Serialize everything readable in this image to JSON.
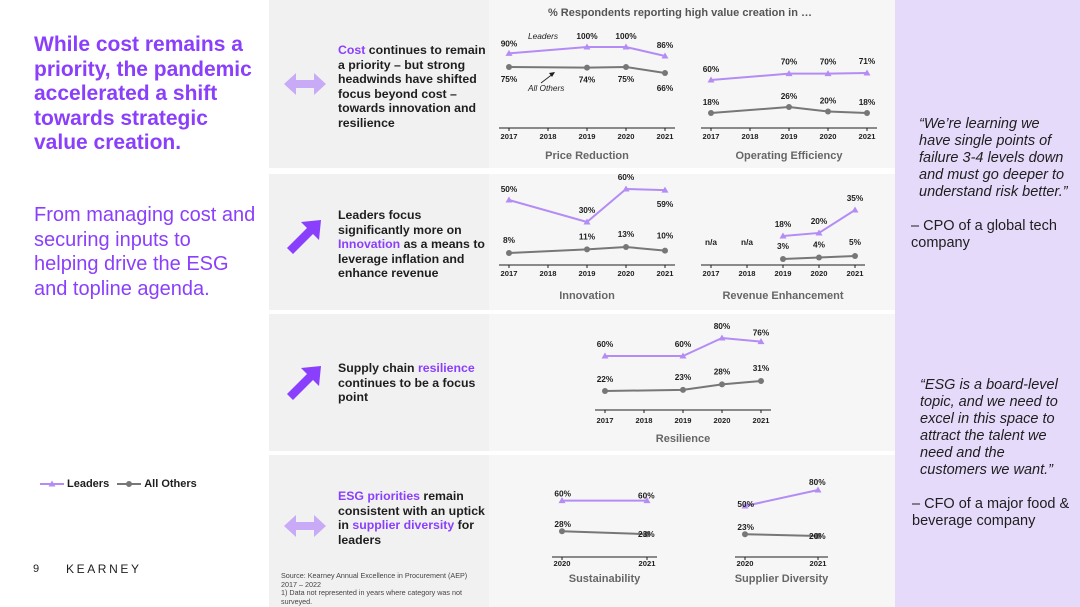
{
  "headline": "While cost remains a priority, the pandemic accelerated a shift towards strategic value creation.",
  "subline": "From managing cost and securing inputs to helping drive the ESG and topline agenda.",
  "legend": {
    "leaders": "Leaders",
    "others": "All Others"
  },
  "page_number": "9",
  "brand": "KEARNEY",
  "chart_header": "% Respondents reporting high value creation in …",
  "annotations": {
    "leaders": "Leaders",
    "others": "All Others"
  },
  "bands": [
    {
      "pre": "",
      "hl": "Cost",
      "post": " continues to remain a priority – but strong headwinds have shifted focus beyond cost – towards innovation and resilience",
      "arrow": "double"
    },
    {
      "pre": "Leaders focus significantly more on ",
      "hl": "Innovation",
      "post": " as a means to leverage inflation and enhance revenue",
      "arrow": "up"
    },
    {
      "pre": "Supply chain ",
      "hl": "resilience",
      "post": " continues to be a focus point",
      "arrow": "up"
    },
    {
      "pre": "",
      "hl": "ESG priorities",
      "post": " remain consistent with an uptick in ",
      "hl2": "supplier diversity",
      "post2": " for leaders",
      "arrow": "double"
    }
  ],
  "quotes": [
    {
      "text": "“We’re learning we have single points of failure 3-4 levels down and must go deeper to understand risk better.”",
      "attribution": "– CPO of a global tech company"
    },
    {
      "text": "“ESG is a board-level topic, and we need to excel in this space to attract the talent we need and the customers we want.”",
      "attribution": "– CFO of a major food & beverage company"
    }
  ],
  "source": "Source: Kearney Annual Excellence in Procurement (AEP) 2017 – 2022\n1) Data not represented in years where category was not surveyed.",
  "chart_data": [
    {
      "type": "line",
      "title": "Price Reduction",
      "x": [
        "2017",
        "2018",
        "2019",
        "2020",
        "2021"
      ],
      "series": [
        {
          "name": "Leaders",
          "values": [
            90,
            null,
            100,
            100,
            86
          ]
        },
        {
          "name": "All Others",
          "values": [
            75,
            null,
            74,
            75,
            66
          ]
        }
      ],
      "labels": [
        [
          "90%",
          null,
          "100%",
          "100%",
          "86%"
        ],
        [
          "75%",
          null,
          "74%",
          "75%",
          "66%"
        ]
      ],
      "color_leaders": "#b48cf5",
      "color_others": "#777777"
    },
    {
      "type": "line",
      "title": "Operating Efficiency",
      "x": [
        "2017",
        "2018",
        "2019",
        "2020",
        "2021"
      ],
      "series": [
        {
          "name": "Leaders",
          "values": [
            60,
            null,
            70,
            70,
            71
          ]
        },
        {
          "name": "All Others",
          "values": [
            18,
            null,
            26,
            20,
            18
          ]
        }
      ],
      "labels": [
        [
          "60%",
          null,
          "70%",
          "70%",
          "71%"
        ],
        [
          "18%",
          null,
          "26%",
          "20%",
          "18%"
        ]
      ]
    },
    {
      "type": "line",
      "title": "Innovation",
      "x": [
        "2017",
        "2018",
        "2019",
        "2020",
        "2021"
      ],
      "series": [
        {
          "name": "Leaders",
          "values": [
            50,
            null,
            30,
            60,
            59
          ]
        },
        {
          "name": "All Others",
          "values": [
            8,
            null,
            11,
            13,
            10
          ]
        }
      ],
      "labels": [
        [
          "50%",
          null,
          "30%",
          "60%",
          "59%"
        ],
        [
          "8%",
          null,
          "11%",
          "13%",
          "10%"
        ]
      ]
    },
    {
      "type": "line",
      "title": "Revenue Enhancement",
      "x": [
        "2017",
        "2018",
        "2019",
        "2020",
        "2021"
      ],
      "series": [
        {
          "name": "Leaders",
          "values": [
            null,
            null,
            18,
            20,
            35
          ]
        },
        {
          "name": "All Others",
          "values": [
            null,
            null,
            3,
            4,
            5
          ]
        }
      ],
      "labels": [
        [
          null,
          null,
          "18%",
          "20%",
          "35%"
        ],
        [
          "n/a",
          "n/a",
          "3%",
          "4%",
          "5%"
        ]
      ]
    },
    {
      "type": "line",
      "title": "Resilience",
      "x": [
        "2017",
        "2018",
        "2019",
        "2020",
        "2021"
      ],
      "series": [
        {
          "name": "Leaders",
          "values": [
            60,
            null,
            60,
            80,
            76
          ]
        },
        {
          "name": "All Others",
          "values": [
            22,
            null,
            23,
            28,
            31
          ]
        }
      ],
      "labels": [
        [
          "60%",
          null,
          "60%",
          "80%",
          "76%"
        ],
        [
          "22%",
          null,
          "23%",
          "28%",
          "31%"
        ]
      ]
    },
    {
      "type": "line",
      "title": "Sustainability",
      "x": [
        "2020",
        "2021"
      ],
      "series": [
        {
          "name": "Leaders",
          "values": [
            60,
            60
          ]
        },
        {
          "name": "All Others",
          "values": [
            28,
            23
          ]
        }
      ],
      "labels": [
        [
          "60%",
          "60%"
        ],
        [
          "28%",
          "23%"
        ]
      ]
    },
    {
      "type": "line",
      "title": "Supplier Diversity",
      "x": [
        "2020",
        "2021"
      ],
      "series": [
        {
          "name": "Leaders",
          "values": [
            50,
            80
          ]
        },
        {
          "name": "All Others",
          "values": [
            23,
            20
          ]
        }
      ],
      "labels": [
        [
          "50%",
          "80%"
        ],
        [
          "23%",
          "20%"
        ]
      ]
    }
  ]
}
